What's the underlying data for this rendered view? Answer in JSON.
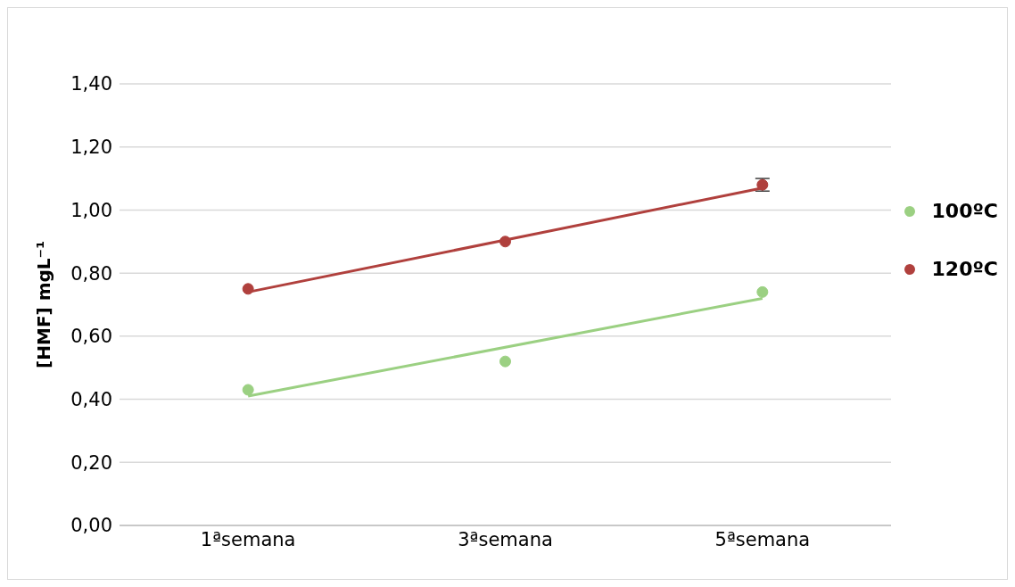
{
  "chart_data": {
    "type": "scatter",
    "ylabel": "[HMF] mgL⁻¹",
    "categories": [
      "1ªsemana",
      "3ªsemana",
      "5ªsemana"
    ],
    "series": [
      {
        "name": "100ºC",
        "color": "#9bd082",
        "values": [
          0.43,
          0.52,
          0.74
        ],
        "marker": "circle"
      },
      {
        "name": "120ºC",
        "color": "#b0403d",
        "values": [
          0.75,
          0.9,
          1.08
        ],
        "errors": [
          null,
          null,
          0.02
        ],
        "marker": "circle"
      },
      {
        "type": "line",
        "color": "#9bd082",
        "x": [
          "1ªsemana",
          "5ªsemana"
        ],
        "values": [
          0.41,
          0.72
        ],
        "marker": "none"
      },
      {
        "type": "line",
        "color": "#b0403d",
        "x": [
          "1ªsemana",
          "5ªsemana"
        ],
        "values": [
          0.74,
          1.07
        ],
        "marker": "none"
      }
    ],
    "ylim": [
      0,
      1.4
    ],
    "yticks": [
      {
        "value": 0,
        "label": "0,00"
      },
      {
        "value": 0.2,
        "label": "0,20"
      },
      {
        "value": 0.4,
        "label": "0,40"
      },
      {
        "value": 0.6,
        "label": "0,60"
      },
      {
        "value": 0.8,
        "label": "0,80"
      },
      {
        "value": 1,
        "label": "1,00"
      },
      {
        "value": 1.2,
        "label": "1,20"
      },
      {
        "value": 1.4,
        "label": "1,40"
      }
    ],
    "grid": "y",
    "legend": "right"
  }
}
